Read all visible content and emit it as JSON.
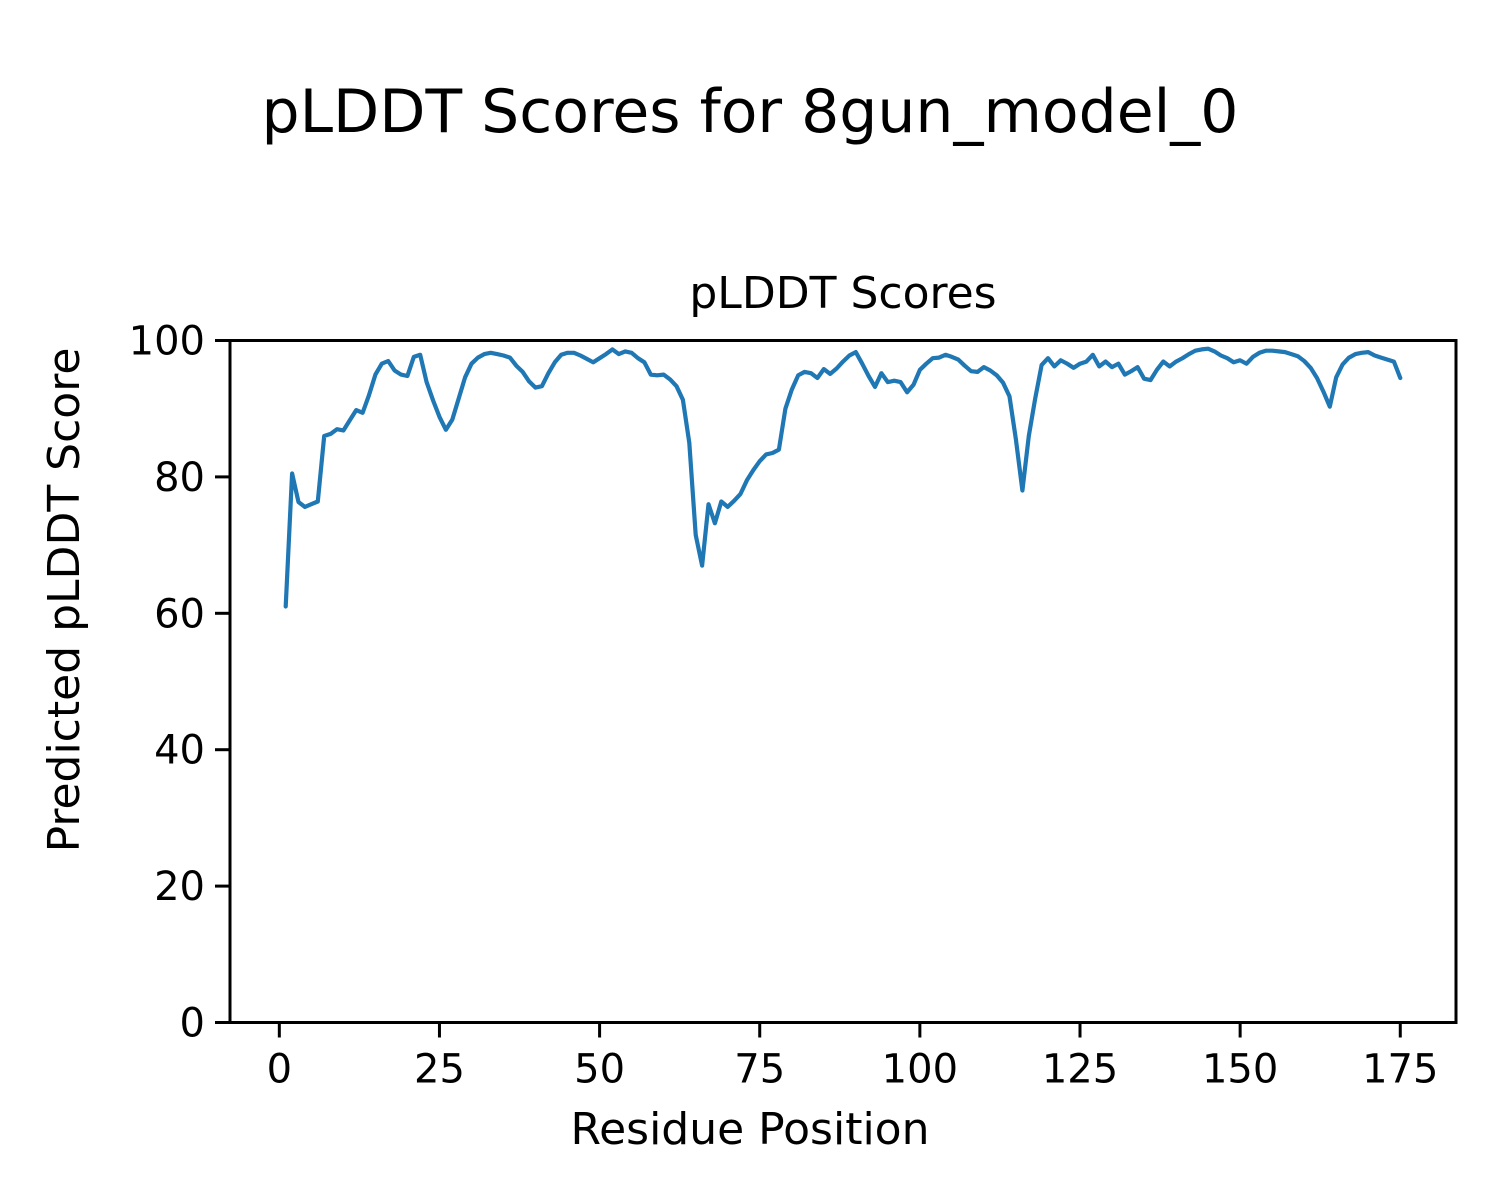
{
  "figure": {
    "suptitle": "pLDDT Scores for 8gun_model_0",
    "axes_title": "pLDDT Scores",
    "xlabel": "Residue Position",
    "ylabel": "Predicted pLDDT Score"
  },
  "chart_data": {
    "type": "line",
    "title": "pLDDT Scores",
    "suptitle": "pLDDT Scores for 8gun_model_0",
    "xlabel": "Residue Position",
    "ylabel": "Predicted pLDDT Score",
    "xlim": [
      -7.7,
      183.7
    ],
    "ylim": [
      0,
      100
    ],
    "xticks": [
      0,
      25,
      50,
      75,
      100,
      125,
      150,
      175
    ],
    "yticks": [
      0,
      20,
      40,
      60,
      80,
      100
    ],
    "grid": false,
    "legend": "none",
    "line_color": "#1f77b4",
    "axis_color": "#000000",
    "series": [
      {
        "name": "pLDDT",
        "x_start": 1,
        "x_step": 1,
        "values": [
          61.0,
          80.5,
          76.3,
          75.6,
          76.0,
          76.4,
          86.0,
          86.3,
          87.0,
          86.8,
          88.3,
          89.8,
          89.4,
          92.0,
          95.0,
          96.6,
          97.0,
          95.6,
          95.0,
          94.8,
          97.6,
          97.9,
          93.9,
          91.2,
          88.8,
          86.9,
          88.4,
          91.5,
          94.6,
          96.6,
          97.5,
          98.0,
          98.2,
          98.0,
          97.8,
          97.5,
          96.3,
          95.4,
          94.0,
          93.1,
          93.3,
          95.2,
          96.8,
          97.9,
          98.2,
          98.2,
          97.8,
          97.3,
          96.8,
          97.4,
          98.0,
          98.7,
          98.0,
          98.4,
          98.2,
          97.4,
          96.8,
          95.0,
          94.9,
          95.0,
          94.3,
          93.3,
          91.3,
          85.0,
          71.5,
          67.0,
          76.0,
          73.2,
          76.4,
          75.6,
          76.5,
          77.5,
          79.5,
          81.0,
          82.3,
          83.3,
          83.5,
          84.0,
          90.0,
          92.8,
          94.9,
          95.4,
          95.2,
          94.5,
          95.8,
          95.1,
          95.9,
          96.9,
          97.8,
          98.3,
          96.6,
          94.8,
          93.2,
          95.2,
          93.9,
          94.1,
          93.9,
          92.4,
          93.5,
          95.7,
          96.6,
          97.4,
          97.5,
          97.9,
          97.6,
          97.2,
          96.3,
          95.5,
          95.4,
          96.1,
          95.6,
          94.9,
          93.8,
          91.8,
          85.5,
          78.0,
          86.0,
          91.5,
          96.4,
          97.4,
          96.2,
          97.1,
          96.6,
          96.0,
          96.6,
          96.9,
          97.9,
          96.2,
          96.9,
          96.1,
          96.6,
          95.0,
          95.5,
          96.1,
          94.4,
          94.2,
          95.7,
          96.9,
          96.2,
          96.9,
          97.4,
          98.0,
          98.5,
          98.7,
          98.8,
          98.4,
          97.8,
          97.4,
          96.8,
          97.1,
          96.6,
          97.6,
          98.2,
          98.5,
          98.5,
          98.4,
          98.3,
          98.0,
          97.7,
          97.0,
          96.0,
          94.5,
          92.5,
          90.3,
          94.6,
          96.5,
          97.5,
          98.0,
          98.2,
          98.3,
          97.8,
          97.5,
          97.2,
          96.9,
          94.5
        ]
      }
    ]
  }
}
